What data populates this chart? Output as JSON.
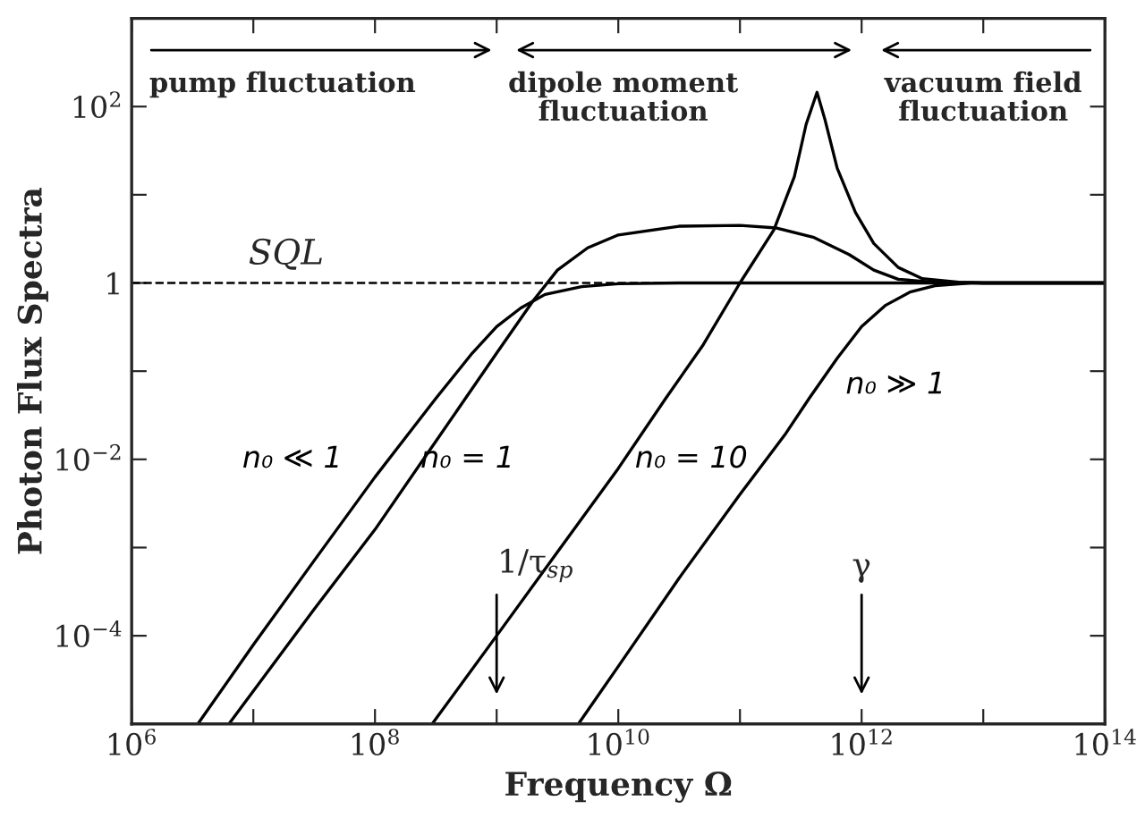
{
  "chart_data": {
    "type": "line",
    "xlabel": "Frequency Ω",
    "ylabel": "Photon Flux Spectra",
    "log": "xy",
    "xlim": [
      1000000.0,
      100000000000000.0
    ],
    "ylim": [
      1e-05,
      1000
    ],
    "xticks": [
      {
        "value": 1000000.0,
        "label": "10$^{6}$"
      },
      {
        "value": 10000000.0,
        "label": null
      },
      {
        "value": 100000000.0,
        "label": "10$^{8}$"
      },
      {
        "value": 1000000000.0,
        "label": null
      },
      {
        "value": 10000000000.0,
        "label": "10$^{10}$"
      },
      {
        "value": 100000000000.0,
        "label": null
      },
      {
        "value": 1000000000000.0,
        "label": "10$^{12}$"
      },
      {
        "value": 10000000000000.0,
        "label": null
      },
      {
        "value": 100000000000000.0,
        "label": "10$^{14}$"
      }
    ],
    "yticks": [
      {
        "value": 0.0001,
        "label": "10$^{−4}$"
      },
      {
        "value": 0.001,
        "label": null
      },
      {
        "value": 0.01,
        "label": "10$^{−2}$"
      },
      {
        "value": 0.1,
        "label": null
      },
      {
        "value": 1,
        "label": "1"
      },
      {
        "value": 10,
        "label": null
      },
      {
        "value": 100,
        "label": "10$^{2}$"
      }
    ],
    "grid": false,
    "marker": "none",
    "line_style": "solid",
    "series": [
      {
        "name": "n₀ ≪ 1",
        "color": "#000000",
        "x": [
          3500000.0,
          10000000.0,
          31600000.0,
          100000000.0,
          316000000.0,
          630000000.0,
          1000000000.0,
          1580000000.0,
          2500000000.0,
          5000000000.0,
          10000000000.0,
          31600000000.0,
          100000000000000.0
        ],
        "values": [
          1e-05,
          7.9e-05,
          0.00071,
          0.0063,
          0.049,
          0.16,
          0.32,
          0.52,
          0.74,
          0.91,
          0.98,
          1,
          1
        ]
      },
      {
        "name": "n₀ = 1",
        "color": "#000000",
        "x": [
          6300000.0,
          31600000.0,
          100000000.0,
          316000000.0,
          1000000000.0,
          2000000000.0,
          3160000000.0,
          5600000000.0,
          10000000000.0,
          31600000000.0,
          100000000000.0,
          200000000000.0,
          400000000000.0,
          790000000000.0,
          1260000000000.0,
          2000000000000.0,
          4000000000000.0,
          10000000000000.0,
          100000000000000.0
        ],
        "values": [
          1e-05,
          0.0002,
          0.0016,
          0.016,
          0.16,
          0.63,
          1.4,
          2.5,
          3.5,
          4.4,
          4.5,
          4.2,
          3.3,
          2.1,
          1.4,
          1.1,
          1.02,
          1,
          1
        ]
      },
      {
        "name": "n₀ = 10",
        "color": "#000000",
        "x": [
          295000000.0,
          1000000000.0,
          3160000000.0,
          10000000000.0,
          24500000000.0,
          50000000000.0,
          100000000000.0,
          190000000000.0,
          280000000000.0,
          350000000000.0,
          430000000000.0,
          500000000000.0,
          630000000000.0,
          890000000000.0,
          1260000000000.0,
          2000000000000.0,
          3160000000000.0,
          6300000000000.0,
          10000000000000.0,
          100000000000000.0
        ],
        "values": [
          1e-05,
          0.0001,
          0.00089,
          0.0079,
          0.049,
          0.2,
          1,
          4,
          16,
          63,
          145,
          71,
          20,
          6.3,
          2.8,
          1.5,
          1.12,
          1.02,
          1,
          1
        ]
      },
      {
        "name": "n₀ ≫ 1",
        "color": "#000000",
        "x": [
          4700000000.0,
          10000000000.0,
          31600000000.0,
          100000000000.0,
          234000000000.0,
          370000000000.0,
          630000000000.0,
          1000000000000.0,
          1580000000000.0,
          2500000000000.0,
          4000000000000.0,
          7900000000000.0,
          100000000000000.0
        ],
        "values": [
          1e-05,
          4.5e-05,
          0.00045,
          0.004,
          0.019,
          0.049,
          0.14,
          0.32,
          0.56,
          0.79,
          0.93,
          1,
          1
        ]
      }
    ],
    "ref_lines": [
      {
        "axis": "y",
        "value": 1,
        "label": "SQL",
        "line_style": "dashed",
        "color": "#000000"
      }
    ],
    "annotations": [
      "pump fluctuation",
      "dipole moment\nfluctuation",
      "vacuum field\nfluctuation",
      "1/τ$_{sp}$",
      "γ"
    ]
  }
}
